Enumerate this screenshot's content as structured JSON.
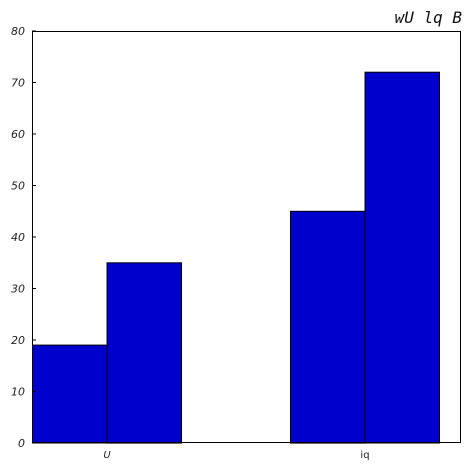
{
  "chart_data": {
    "type": "bar",
    "title": "wU lq B",
    "xlabel": "",
    "ylabel": "",
    "categories": [
      "U",
      "iq"
    ],
    "category_tick_labels": [
      "U",
      "iq"
    ],
    "series": [
      {
        "values": [
          19,
          45
        ]
      },
      {
        "values": [
          35,
          72
        ]
      }
    ],
    "ylim": [
      0,
      80
    ],
    "yticks": [
      0,
      10,
      20,
      30,
      40,
      50,
      60,
      70,
      80
    ],
    "grid": false,
    "legend": "none",
    "bar_color": "#0000cc",
    "bar_edge_color": "#000000"
  }
}
